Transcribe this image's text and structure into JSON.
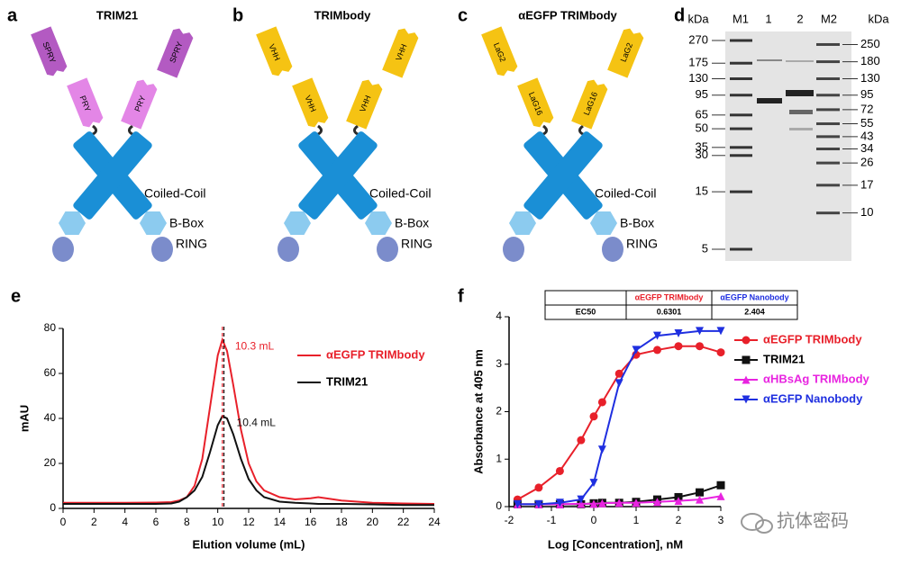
{
  "figure": {
    "diagrams": [
      {
        "letter": "a",
        "title": "TRIM21",
        "outer": "SPRY",
        "inner": "PRY",
        "outer_color": "#b35ac2",
        "inner_color": "#e386e6",
        "coil": "Coiled-Coil",
        "bbox": "B-Box",
        "ring": "RING"
      },
      {
        "letter": "b",
        "title": "TRIMbody",
        "outer": "VHH",
        "inner": "VHH",
        "outer_color": "#f5c313",
        "inner_color": "#f5c313",
        "coil": "Coiled-Coil",
        "bbox": "B-Box",
        "ring": "RING"
      },
      {
        "letter": "c",
        "title": "αEGFP TRIMbody",
        "outer": "LaG2",
        "inner": "LaG16",
        "outer_color": "#f5c313",
        "inner_color": "#f5c313",
        "coil": "Coiled-Coil",
        "bbox": "B-Box",
        "ring": "RING"
      }
    ],
    "gel": {
      "letter": "d",
      "unit": "kDa",
      "lanes": [
        "M1",
        "1",
        "2",
        "M2"
      ],
      "left_markers": [
        270,
        175,
        130,
        95,
        65,
        50,
        35,
        30,
        15,
        5
      ],
      "right_markers": [
        250,
        180,
        130,
        95,
        72,
        55,
        43,
        34,
        26,
        17,
        10
      ]
    },
    "watermark": "抗体密码"
  },
  "chart_data": [
    {
      "panel": "e",
      "type": "line",
      "xlabel": "Elution volume (mL)",
      "ylabel": "mAU",
      "xlim": [
        0,
        24
      ],
      "xticks": [
        0,
        2,
        4,
        6,
        8,
        10,
        12,
        14,
        16,
        18,
        20,
        22,
        24
      ],
      "ylim": [
        0,
        80
      ],
      "yticks": [
        0,
        20,
        40,
        60,
        80
      ],
      "x": [
        0,
        2,
        4,
        6,
        7,
        7.5,
        8,
        8.5,
        9,
        9.5,
        10,
        10.3,
        10.6,
        11,
        11.5,
        12,
        12.5,
        13,
        14,
        15,
        16,
        16.5,
        17,
        18,
        20,
        22,
        24
      ],
      "series": [
        {
          "name": "αEGFP TRIMbody",
          "color": "#e8202a",
          "values": [
            2.5,
            2.5,
            2.5,
            2.6,
            2.8,
            3.5,
            5,
            10,
            22,
            45,
            68,
            75,
            70,
            55,
            35,
            20,
            12,
            8,
            5,
            4,
            4.5,
            5,
            4.5,
            3.5,
            2.5,
            2.2,
            2
          ]
        },
        {
          "name": "TRIM21",
          "color": "#111111",
          "values": [
            2,
            2,
            2,
            2,
            2.2,
            3,
            5,
            8,
            14,
            25,
            37,
            41,
            40,
            33,
            22,
            13,
            8,
            5,
            3,
            2.5,
            2.2,
            2,
            2,
            2,
            1.8,
            1.5,
            1.5
          ]
        }
      ],
      "peaks": [
        {
          "x": 10.3,
          "label": "10.3 mL",
          "color": "#e8202a"
        },
        {
          "x": 10.4,
          "label": "10.4 mL",
          "color": "#111111"
        }
      ]
    },
    {
      "panel": "f",
      "type": "scatter",
      "xlabel": "Log [Concentration], nM",
      "ylabel": "Absorbance at 405 nm",
      "xlim": [
        -2,
        3
      ],
      "xticks": [
        -2,
        -1,
        0,
        1,
        2,
        3
      ],
      "ylim": [
        0,
        4
      ],
      "yticks": [
        0,
        1,
        2,
        3,
        4
      ],
      "x": [
        -1.8,
        -1.3,
        -0.8,
        -0.3,
        0,
        0.2,
        0.6,
        1,
        1.5,
        2,
        2.5,
        3
      ],
      "series": [
        {
          "name": "αEGFP TRIMbody",
          "color": "#e8202a",
          "marker": "circle",
          "values": [
            0.15,
            0.4,
            0.75,
            1.4,
            1.9,
            2.2,
            2.8,
            3.2,
            3.3,
            3.38,
            3.38,
            3.25
          ]
        },
        {
          "name": "TRIM21",
          "color": "#111111",
          "marker": "square",
          "values": [
            0.05,
            0.05,
            0.05,
            0.05,
            0.07,
            0.08,
            0.08,
            0.1,
            0.15,
            0.2,
            0.3,
            0.45
          ]
        },
        {
          "name": "αHBsAg TRIMbody",
          "color": "#e824e0",
          "marker": "triangle-up",
          "values": [
            0.05,
            0.05,
            0.05,
            0.06,
            0.06,
            0.07,
            0.08,
            0.08,
            0.1,
            0.12,
            0.15,
            0.22
          ]
        },
        {
          "name": "αEGFP Nanobody",
          "color": "#1f2fe0",
          "marker": "triangle-down",
          "values": [
            0.05,
            0.05,
            0.08,
            0.15,
            0.5,
            1.2,
            2.6,
            3.3,
            3.6,
            3.65,
            3.7,
            3.7
          ]
        }
      ],
      "table": {
        "columns": [
          "αEGFP TRIMbody",
          "αEGFP Nanobody"
        ],
        "column_colors": [
          "#e8202a",
          "#1f2fe0"
        ],
        "row_label": "EC50",
        "values": [
          0.6301,
          2.404
        ]
      }
    }
  ]
}
